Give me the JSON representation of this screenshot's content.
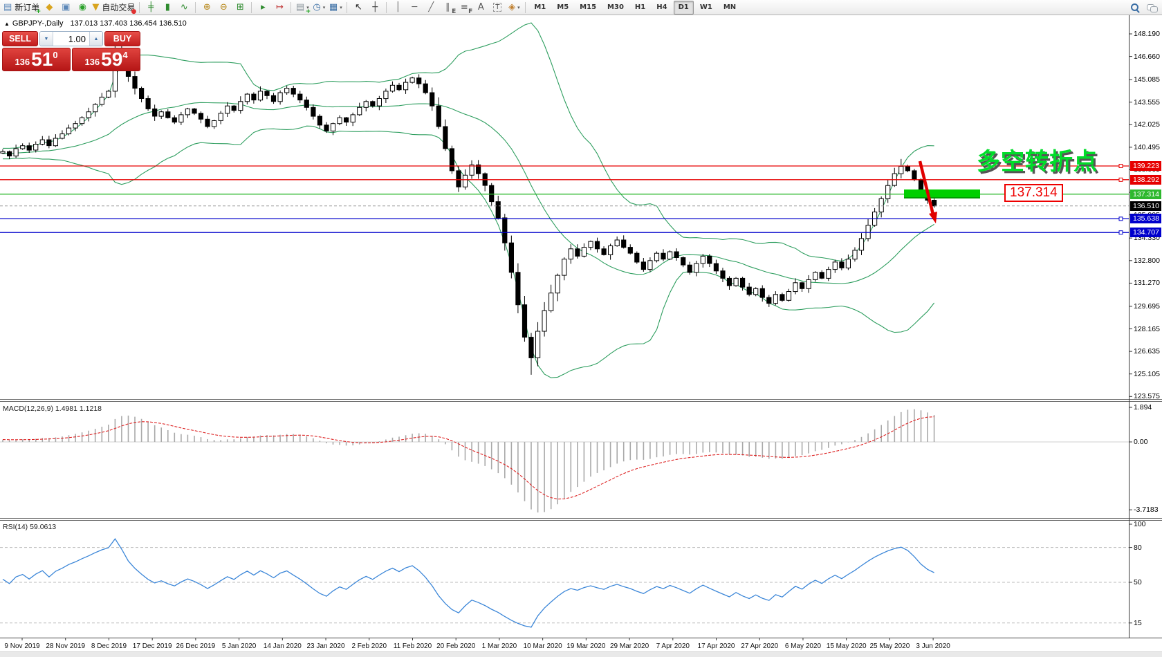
{
  "toolbar": {
    "items": [
      {
        "name": "new-order-button",
        "glyph": "▤",
        "color": "#5b87b8",
        "overlay": "+",
        "overlay_color": "#16a016",
        "label": "新订单"
      },
      {
        "name": "market-watch-icon",
        "glyph": "◆",
        "color": "#d9a41e"
      },
      {
        "name": "terminal-window-icon",
        "glyph": "▣",
        "color": "#5b87b8"
      },
      {
        "name": "signals-icon",
        "glyph": "◉",
        "color": "#2aa02a"
      },
      {
        "name": "autotrading-button",
        "glyph": "▼",
        "color": "#d9a41e",
        "overlay": "●",
        "overlay_color": "#e03030",
        "label": "自动交易"
      },
      {
        "sep": true
      },
      {
        "name": "bar-chart-icon",
        "glyph": "╪",
        "color": "#2e8b2e"
      },
      {
        "name": "candlestick-chart-icon",
        "glyph": "▮",
        "color": "#2e8b2e"
      },
      {
        "name": "line-chart-icon",
        "glyph": "∿",
        "color": "#2e8b2e"
      },
      {
        "sep": true
      },
      {
        "name": "zoom-in-icon",
        "glyph": "⊕",
        "color": "#b8891c"
      },
      {
        "name": "zoom-out-icon",
        "glyph": "⊖",
        "color": "#b8891c"
      },
      {
        "name": "tile-windows-icon",
        "glyph": "⊞",
        "color": "#2e8b2e"
      },
      {
        "sep": true
      },
      {
        "name": "auto-scroll-icon",
        "glyph": "▸",
        "color": "#2e8b2e"
      },
      {
        "name": "chart-shift-icon",
        "glyph": "↦",
        "color": "#c23a3a"
      },
      {
        "sep": true
      },
      {
        "name": "indicators-list-icon",
        "glyph": "▤",
        "color": "#8d979e",
        "overlay": "+",
        "overlay_color": "#16a016",
        "drop": true
      },
      {
        "name": "periods-icon",
        "glyph": "◷",
        "color": "#3a6ea5",
        "drop": true
      },
      {
        "name": "templates-icon",
        "glyph": "▦",
        "color": "#3a6ea5",
        "drop": true
      },
      {
        "sep": true
      },
      {
        "name": "cursor-icon",
        "glyph": "↖",
        "color": "#222222"
      },
      {
        "name": "crosshair-icon",
        "glyph": "┼",
        "color": "#444444"
      },
      {
        "sep": true
      },
      {
        "name": "vertical-line-icon",
        "glyph": "│",
        "color": "#666666"
      },
      {
        "name": "horizontal-line-icon",
        "glyph": "─",
        "color": "#666666"
      },
      {
        "name": "trendline-icon",
        "glyph": "╱",
        "color": "#666666"
      },
      {
        "name": "equidistant-channel-icon",
        "glyph": "∥",
        "color": "#666666",
        "overlay": "E",
        "overlay_color": "#555555"
      },
      {
        "name": "fibonacci-icon",
        "glyph": "≡",
        "color": "#666666",
        "overlay": "F",
        "overlay_color": "#555555"
      },
      {
        "name": "text-icon",
        "glyph": "A",
        "color": "#555555"
      },
      {
        "name": "text-label-icon",
        "glyph": "T",
        "color": "#555555",
        "boxed": true
      },
      {
        "name": "arrows-icon",
        "glyph": "◈",
        "color": "#c08030",
        "drop": true
      },
      {
        "sep": true
      }
    ],
    "timeframes": [
      "M1",
      "M5",
      "M15",
      "M30",
      "H1",
      "H4",
      "D1",
      "W1",
      "MN"
    ],
    "active_timeframe": "D1",
    "right_icons": [
      {
        "name": "search-icon",
        "kind": "search"
      },
      {
        "name": "chat-icon",
        "kind": "chat"
      }
    ]
  },
  "chart_header": {
    "collapse_marker": "▲",
    "title": "GBPJPY-,Daily",
    "ohlc": "137.013 137.403 136.454 136.510"
  },
  "trade_panel": {
    "sell": "SELL",
    "buy": "BUY",
    "volume": "1.00",
    "sell_small": "136",
    "sell_big": "51",
    "sell_sup": "0",
    "buy_small": "136",
    "buy_big": "59",
    "buy_sup": "4"
  },
  "annotations": {
    "note": "多空转折点",
    "price_tag": "137.314",
    "note_color": "#00dd2a",
    "arrow_color": "#e00000",
    "highlight_color": "#00cf00"
  },
  "macd_panel": {
    "label": "MACD(12,26,9) 1.4981 1.1218",
    "ticks": [
      {
        "v": 1.894,
        "t": "1.894"
      },
      {
        "v": 0,
        "t": "0.00"
      },
      {
        "v": -3.7183,
        "t": "-3.7183"
      }
    ]
  },
  "rsi_panel": {
    "label": "RSI(14) 59.0613",
    "levels": [
      {
        "v": 100,
        "t": "100",
        "line": false
      },
      {
        "v": 80,
        "t": "80",
        "line": true
      },
      {
        "v": 50,
        "t": "50",
        "line": true
      },
      {
        "v": 15,
        "t": "15",
        "line": true
      }
    ]
  },
  "chart_data": {
    "type": "candlestick",
    "symbol": "GBPJPY-",
    "timeframe": "Daily",
    "ohlc_display": {
      "open": 137.013,
      "high": 137.403,
      "low": 136.454,
      "close": 136.51
    },
    "bid": 136.51,
    "current_price_label": "136.510",
    "warmup": 20,
    "closes": [
      139.6,
      139.9,
      139.7,
      140.0,
      139.8,
      140.1,
      139.9,
      140.2,
      140.0,
      139.8,
      140.1,
      140.3,
      140.0,
      140.2,
      140.4,
      140.1,
      140.3,
      140.0,
      140.2,
      140.1,
      140.2,
      139.9,
      140.4,
      140.6,
      140.3,
      140.7,
      141.0,
      140.6,
      141.1,
      141.4,
      141.8,
      142.1,
      142.5,
      142.9,
      143.4,
      143.9,
      144.3,
      147.2,
      146.4,
      145.3,
      144.5,
      143.8,
      143.1,
      142.6,
      142.9,
      142.5,
      142.2,
      142.7,
      143.1,
      142.8,
      142.4,
      141.9,
      142.3,
      142.8,
      143.3,
      143.0,
      143.6,
      144.1,
      143.7,
      144.3,
      144.0,
      143.6,
      144.2,
      144.5,
      144.1,
      143.7,
      143.2,
      142.6,
      142.0,
      141.6,
      142.1,
      142.5,
      142.2,
      142.7,
      143.2,
      143.6,
      143.3,
      143.8,
      144.3,
      144.7,
      144.4,
      144.9,
      145.2,
      144.8,
      144.2,
      143.3,
      141.9,
      140.4,
      138.9,
      137.8,
      138.6,
      139.3,
      138.7,
      137.9,
      136.8,
      135.7,
      134.0,
      132.0,
      129.8,
      127.6,
      126.2,
      128.0,
      129.4,
      130.6,
      131.8,
      132.9,
      133.6,
      133.1,
      133.7,
      134.1,
      133.6,
      133.2,
      133.8,
      134.2,
      133.7,
      133.3,
      132.7,
      132.2,
      132.8,
      133.3,
      132.9,
      133.4,
      133.0,
      132.5,
      132.0,
      132.6,
      133.1,
      132.6,
      132.1,
      131.6,
      131.1,
      131.6,
      131.0,
      130.5,
      130.9,
      130.3,
      129.9,
      130.5,
      130.1,
      130.7,
      131.3,
      130.9,
      131.5,
      132.0,
      131.6,
      132.2,
      132.7,
      132.3,
      132.9,
      133.5,
      134.3,
      135.2,
      136.1,
      137.0,
      137.9,
      138.7,
      139.2,
      138.9,
      138.3,
      137.5,
      136.9,
      136.51
    ],
    "special_highs": {
      "17": 148.2,
      "18": 147.85,
      "136": 139.7
    },
    "special_lows": {
      "80": 125.05,
      "116": 129.65
    },
    "price_ticks": [
      "148.190",
      "146.660",
      "145.085",
      "143.555",
      "142.025",
      "140.495",
      "138.965",
      "137.435",
      "135.905",
      "134.330",
      "132.800",
      "131.270",
      "129.695",
      "128.165",
      "126.635",
      "125.105",
      "123.575"
    ],
    "hlines": [
      {
        "price": 139.223,
        "label": "139.223",
        "color": "#e60000",
        "handle": true
      },
      {
        "price": 138.292,
        "label": "138.292",
        "color": "#e60000",
        "handle": true
      },
      {
        "price": 137.314,
        "label": "137.314",
        "color": "#2eb82e",
        "handle": false
      },
      {
        "price": 135.638,
        "label": "135.638",
        "color": "#0000cc",
        "handle": true
      },
      {
        "price": 134.707,
        "label": "134.707",
        "color": "#0000cc",
        "handle": true
      }
    ],
    "dates": [
      "9 Nov 2019",
      "28 Nov 2019",
      "8 Dec 2019",
      "17 Dec 2019",
      "26 Dec 2019",
      "5 Jan 2020",
      "14 Jan 2020",
      "23 Jan 2020",
      "2 Feb 2020",
      "11 Feb 2020",
      "20 Feb 2020",
      "1 Mar 2020",
      "10 Mar 2020",
      "19 Mar 2020",
      "29 Mar 2020",
      "7 Apr 2020",
      "17 Apr 2020",
      "27 Apr 2020",
      "6 May 2020",
      "15 May 2020",
      "25 May 2020",
      "3 Jun 2020"
    ],
    "bollinger": {
      "period": 20,
      "deviation": 2,
      "color": "#2e9e5f"
    },
    "macd": {
      "fast": 12,
      "slow": 26,
      "signal": 9,
      "current_main": 1.4981,
      "current_signal": 1.1218,
      "range": [
        -3.7183,
        1.894
      ],
      "histogram_color": "#a9a9a9",
      "signal_color": "#dd2222"
    },
    "rsi": {
      "period": 14,
      "current": 59.0613,
      "color": "#3b86d8",
      "levels": [
        80,
        50,
        15
      ]
    }
  }
}
